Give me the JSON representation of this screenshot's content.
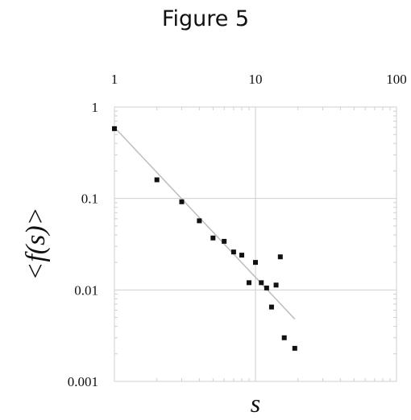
{
  "figure": {
    "title": "Figure 5"
  },
  "chart_data": {
    "type": "scatter",
    "xlabel": "s",
    "ylabel": "<f(s)>",
    "xscale": "log",
    "yscale": "log",
    "xlim": [
      1,
      100
    ],
    "ylim": [
      0.001,
      1
    ],
    "x_ticks": [
      {
        "value": 1,
        "label": "1"
      },
      {
        "value": 10,
        "label": "10"
      },
      {
        "value": 100,
        "label": "100"
      }
    ],
    "y_ticks": [
      {
        "value": 1,
        "label": "1"
      },
      {
        "value": 0.1,
        "label": "0.1"
      },
      {
        "value": 0.01,
        "label": "0.01"
      },
      {
        "value": 0.001,
        "label": "0.001"
      }
    ],
    "x_tick_position": "top",
    "grid": true,
    "points": [
      {
        "x": 1,
        "y": 0.58
      },
      {
        "x": 2,
        "y": 0.16
      },
      {
        "x": 3,
        "y": 0.092
      },
      {
        "x": 4,
        "y": 0.057
      },
      {
        "x": 5,
        "y": 0.037
      },
      {
        "x": 6,
        "y": 0.034
      },
      {
        "x": 7,
        "y": 0.026
      },
      {
        "x": 8,
        "y": 0.024
      },
      {
        "x": 9,
        "y": 0.012
      },
      {
        "x": 10,
        "y": 0.02
      },
      {
        "x": 11,
        "y": 0.012
      },
      {
        "x": 12,
        "y": 0.0105
      },
      {
        "x": 13,
        "y": 0.0065
      },
      {
        "x": 14,
        "y": 0.0113
      },
      {
        "x": 15,
        "y": 0.023
      },
      {
        "x": 16,
        "y": 0.003
      },
      {
        "x": 19,
        "y": 0.0023
      }
    ],
    "fit_line": [
      {
        "x": 1,
        "y": 0.6
      },
      {
        "x": 19,
        "y": 0.0048
      }
    ]
  }
}
